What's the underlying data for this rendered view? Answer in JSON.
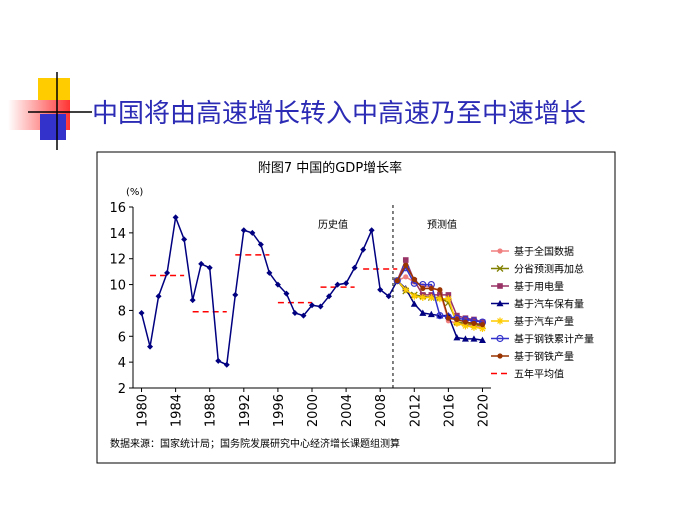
{
  "slide_title": "中国将由高速增长转入中高速乃至中速增长",
  "chart_data": {
    "type": "line",
    "title": "附图7 中国的GDP增长率",
    "y_label": "(%)",
    "annotations": [
      "历史值",
      "预测值"
    ],
    "source": "数据来源：国家统计局；国务院发展研究中心经济增长课题组测算",
    "xlim": [
      1979,
      2021
    ],
    "xticks": [
      1980,
      1984,
      1988,
      1992,
      1996,
      2000,
      2004,
      2008,
      2012,
      2016,
      2020
    ],
    "ylim": [
      2,
      16
    ],
    "yticks": [
      2,
      4,
      6,
      8,
      10,
      12,
      14,
      16
    ],
    "forecast_start": 2009.5,
    "history": {
      "color": "#000080",
      "x": [
        1980,
        1981,
        1982,
        1983,
        1984,
        1985,
        1986,
        1987,
        1988,
        1989,
        1990,
        1991,
        1992,
        1993,
        1994,
        1995,
        1996,
        1997,
        1998,
        1999,
        2000,
        2001,
        2002,
        2003,
        2004,
        2005,
        2006,
        2007,
        2008,
        2009,
        2010
      ],
      "values": [
        7.8,
        5.2,
        9.1,
        10.9,
        15.2,
        13.5,
        8.8,
        11.6,
        11.3,
        4.1,
        3.8,
        9.2,
        14.2,
        14.0,
        13.1,
        10.9,
        10.0,
        9.3,
        7.8,
        7.6,
        8.4,
        8.3,
        9.1,
        10.0,
        10.1,
        11.3,
        12.7,
        14.2,
        9.6,
        9.1,
        10.3
      ]
    },
    "forecast_x": [
      2010,
      2011,
      2012,
      2013,
      2014,
      2015,
      2016,
      2017,
      2018,
      2019,
      2020
    ],
    "series": [
      {
        "name": "基于全国数据",
        "color": "#f08080",
        "marker": "circle",
        "values": [
          10.3,
          10.6,
          10.2,
          9.9,
          9.8,
          9.5,
          7.2,
          7.0,
          6.9,
          6.8,
          6.7
        ]
      },
      {
        "name": "分省预测再加总",
        "color": "#808000",
        "marker": "x",
        "values": [
          10.3,
          9.5,
          9.2,
          9.1,
          9.0,
          9.0,
          8.6,
          7.1,
          7.0,
          6.9,
          6.8
        ]
      },
      {
        "name": "基于用电量",
        "color": "#993366",
        "marker": "square",
        "values": [
          10.3,
          11.9,
          10.3,
          9.2,
          9.2,
          9.2,
          9.2,
          7.6,
          7.4,
          7.3,
          7.1
        ]
      },
      {
        "name": "基于汽车保有量",
        "color": "#000080",
        "marker": "triangle",
        "values": [
          10.3,
          9.7,
          8.5,
          7.8,
          7.7,
          7.6,
          7.6,
          5.9,
          5.8,
          5.8,
          5.7
        ]
      },
      {
        "name": "基于汽车产量",
        "color": "#ffcc00",
        "marker": "star",
        "values": [
          10.3,
          9.6,
          9.1,
          9.0,
          9.0,
          8.9,
          8.9,
          7.0,
          6.8,
          6.7,
          6.6
        ]
      },
      {
        "name": "基于钢铁累计产量",
        "color": "#3333cc",
        "marker": "open-circle",
        "values": [
          10.3,
          11.3,
          10.1,
          10.0,
          10.0,
          7.6,
          7.5,
          7.4,
          7.3,
          7.2,
          7.1
        ]
      },
      {
        "name": "基于钢铁产量",
        "color": "#993300",
        "marker": "circle",
        "values": [
          10.3,
          11.5,
          10.4,
          9.7,
          9.7,
          9.6,
          7.4,
          7.3,
          7.1,
          7.0,
          6.9
        ]
      }
    ],
    "five_year_average": {
      "name": "五年平均值",
      "color": "#ff0000",
      "periods": [
        [
          1981,
          1985
        ],
        [
          1986,
          1990
        ],
        [
          1991,
          1995
        ],
        [
          1996,
          2000
        ],
        [
          2001,
          2005
        ],
        [
          2006,
          2010
        ]
      ],
      "values": [
        10.7,
        7.9,
        12.3,
        8.6,
        9.8,
        11.2
      ]
    }
  }
}
